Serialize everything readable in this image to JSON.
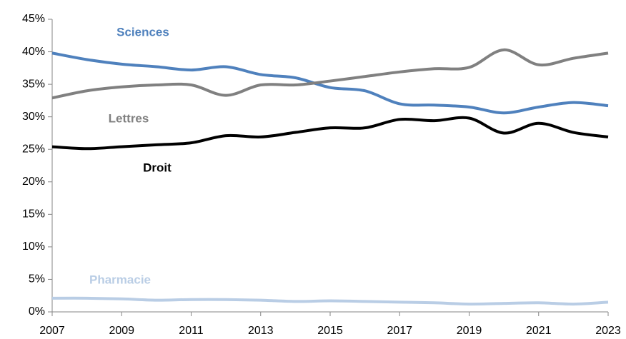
{
  "chart_data": {
    "type": "line",
    "x": [
      2007,
      2008,
      2009,
      2010,
      2011,
      2012,
      2013,
      2014,
      2015,
      2016,
      2017,
      2018,
      2019,
      2020,
      2021,
      2022,
      2023
    ],
    "xlim": [
      2007,
      2023
    ],
    "xticks": [
      2007,
      2009,
      2011,
      2013,
      2015,
      2017,
      2019,
      2021,
      2023
    ],
    "ylim": [
      0,
      45
    ],
    "yticks": [
      {
        "value": 0,
        "label": "0%"
      },
      {
        "value": 5,
        "label": "5%"
      },
      {
        "value": 10,
        "label": "10%"
      },
      {
        "value": 15,
        "label": "15%"
      },
      {
        "value": 20,
        "label": "20%"
      },
      {
        "value": 25,
        "label": "25%"
      },
      {
        "value": 30,
        "label": "30%"
      },
      {
        "value": 35,
        "label": "35%"
      },
      {
        "value": 40,
        "label": "40%"
      },
      {
        "value": 45,
        "label": "45%"
      }
    ],
    "series": [
      {
        "name": "Sciences",
        "color": "#4f81bd",
        "values": [
          39.8,
          38.8,
          38.1,
          37.7,
          37.2,
          37.7,
          36.5,
          36.0,
          34.5,
          34.0,
          32.0,
          31.8,
          31.5,
          30.6,
          31.5,
          32.2,
          31.7
        ]
      },
      {
        "name": "Lettres",
        "color": "#808080",
        "values": [
          32.9,
          34.0,
          34.6,
          34.9,
          34.9,
          33.3,
          34.9,
          34.9,
          35.5,
          36.2,
          36.9,
          37.4,
          37.6,
          40.3,
          38.0,
          39.0,
          39.8
        ]
      },
      {
        "name": "Droit",
        "color": "#000000",
        "values": [
          25.4,
          25.1,
          25.4,
          25.7,
          26.0,
          27.1,
          26.9,
          27.6,
          28.3,
          28.3,
          29.6,
          29.4,
          29.8,
          27.5,
          29.0,
          27.6,
          26.9
        ]
      },
      {
        "name": "Pharmacie",
        "color": "#b9cde5",
        "values": [
          2.1,
          2.1,
          2.0,
          1.8,
          1.9,
          1.9,
          1.8,
          1.6,
          1.7,
          1.6,
          1.5,
          1.4,
          1.2,
          1.3,
          1.4,
          1.2,
          1.5
        ]
      }
    ]
  }
}
